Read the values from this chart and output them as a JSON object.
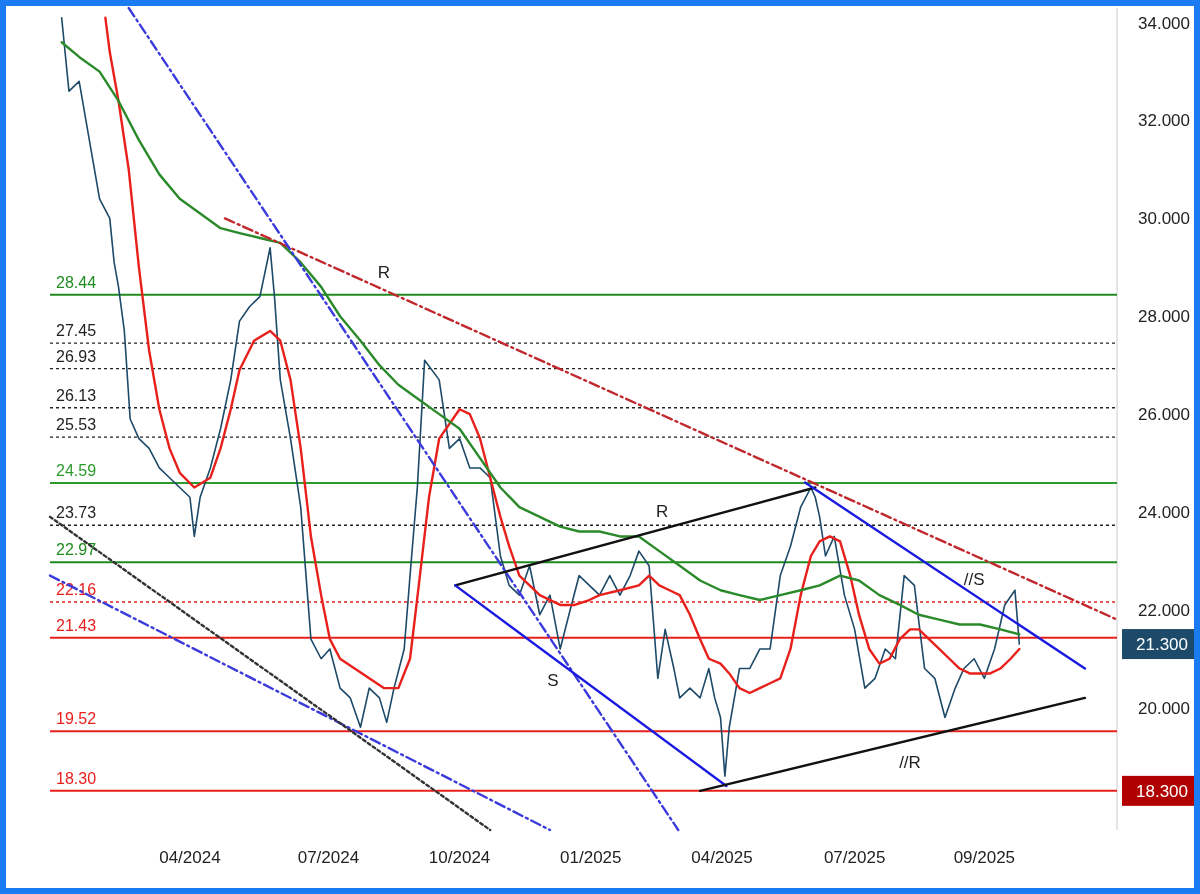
{
  "chart_data": {
    "type": "line",
    "xlim": [
      "2023-12-27",
      "2025-12-28"
    ],
    "ylim": [
      17.5,
      34.3
    ],
    "xticks": [
      {
        "value": "2024-04-01",
        "label": "04/2024"
      },
      {
        "value": "2024-07-05",
        "label": "07/2024"
      },
      {
        "value": "2024-10-03",
        "label": "10/2024"
      },
      {
        "value": "2025-01-01",
        "label": "01/2025"
      },
      {
        "value": "2025-04-01",
        "label": "04/2025"
      },
      {
        "value": "2025-07-01",
        "label": "07/2025"
      },
      {
        "value": "2025-09-28",
        "label": "09/2025"
      }
    ],
    "yticks": [
      {
        "value": 20,
        "label": "20.000"
      },
      {
        "value": 22,
        "label": "22.000"
      },
      {
        "value": 24,
        "label": "24.000"
      },
      {
        "value": 26,
        "label": "26.000"
      },
      {
        "value": 28,
        "label": "28.000"
      },
      {
        "value": 30,
        "label": "30.000"
      },
      {
        "value": 32,
        "label": "32.000"
      },
      {
        "value": 34,
        "label": "34.000"
      }
    ],
    "series": [
      {
        "color": "#1d4a68",
        "x": [
          "2024-01-04",
          "2024-01-09",
          "2024-01-16",
          "2024-01-23",
          "2024-01-30",
          "2024-02-06",
          "2024-02-09",
          "2024-02-12",
          "2024-02-16",
          "2024-02-20",
          "2024-02-26",
          "2024-03-04",
          "2024-03-11",
          "2024-03-18",
          "2024-03-25",
          "2024-04-01",
          "2024-04-04",
          "2024-04-08",
          "2024-04-15",
          "2024-04-22",
          "2024-04-29",
          "2024-05-05",
          "2024-05-12",
          "2024-05-19",
          "2024-05-26",
          "2024-05-29",
          "2024-06-02",
          "2024-06-09",
          "2024-06-16",
          "2024-06-23",
          "2024-06-30",
          "2024-07-06",
          "2024-07-13",
          "2024-07-20",
          "2024-07-27",
          "2024-08-02",
          "2024-08-09",
          "2024-08-14",
          "2024-08-19",
          "2024-08-26",
          "2024-08-30",
          "2024-09-04",
          "2024-09-09",
          "2024-09-19",
          "2024-09-26",
          "2024-10-03",
          "2024-10-10",
          "2024-10-17",
          "2024-10-24",
          "2024-10-31",
          "2024-11-06",
          "2024-11-13",
          "2024-11-20",
          "2024-11-27",
          "2024-12-04",
          "2024-12-11",
          "2024-12-17",
          "2024-12-24",
          "2024-12-31",
          "2025-01-07",
          "2025-01-14",
          "2025-01-21",
          "2025-01-28",
          "2025-02-03",
          "2025-02-10",
          "2025-02-16",
          "2025-02-21",
          "2025-02-27",
          "2025-03-03",
          "2025-03-10",
          "2025-03-17",
          "2025-03-23",
          "2025-03-27",
          "2025-03-31",
          "2025-04-03",
          "2025-04-06",
          "2025-04-13",
          "2025-04-20",
          "2025-04-27",
          "2025-05-04",
          "2025-05-11",
          "2025-05-18",
          "2025-05-25",
          "2025-06-01",
          "2025-06-04",
          "2025-06-07",
          "2025-06-11",
          "2025-06-17",
          "2025-06-24",
          "2025-07-01",
          "2025-07-08",
          "2025-07-15",
          "2025-07-22",
          "2025-07-29",
          "2025-08-04",
          "2025-08-11",
          "2025-08-18",
          "2025-08-25",
          "2025-09-01",
          "2025-09-08",
          "2025-09-14",
          "2025-09-21",
          "2025-09-28",
          "2025-10-05",
          "2025-10-12",
          "2025-10-19",
          "2025-10-22"
        ],
        "values": [
          34.1,
          32.6,
          32.8,
          31.6,
          30.4,
          30.0,
          29.1,
          28.6,
          27.7,
          25.9,
          25.5,
          25.3,
          24.9,
          24.7,
          24.5,
          24.3,
          23.5,
          24.3,
          24.9,
          25.7,
          26.7,
          27.9,
          28.2,
          28.4,
          29.4,
          28.4,
          26.7,
          25.5,
          24.1,
          21.4,
          21.0,
          21.2,
          20.4,
          20.2,
          19.6,
          20.4,
          20.2,
          19.7,
          20.4,
          21.2,
          22.7,
          24.5,
          27.1,
          26.7,
          25.3,
          25.5,
          24.9,
          24.9,
          24.7,
          23.1,
          22.5,
          22.3,
          22.9,
          21.9,
          22.3,
          21.2,
          21.9,
          22.7,
          22.5,
          22.3,
          22.7,
          22.3,
          22.7,
          23.2,
          22.9,
          20.6,
          21.6,
          20.8,
          20.2,
          20.4,
          20.2,
          20.8,
          20.2,
          19.8,
          18.6,
          19.6,
          20.8,
          20.8,
          21.2,
          21.2,
          22.7,
          23.3,
          24.1,
          24.5,
          24.3,
          23.9,
          23.1,
          23.5,
          22.3,
          21.6,
          20.4,
          20.6,
          21.2,
          21.0,
          22.7,
          22.5,
          20.8,
          20.6,
          19.8,
          20.4,
          20.8,
          21.0,
          20.6,
          21.2,
          22.1,
          22.4,
          21.3
        ]
      },
      {
        "color": "#e8201c",
        "x": [
          "2024-02-03",
          "2024-02-06",
          "2024-02-12",
          "2024-02-19",
          "2024-02-26",
          "2024-03-04",
          "2024-03-11",
          "2024-03-18",
          "2024-03-25",
          "2024-04-04",
          "2024-04-15",
          "2024-04-22",
          "2024-04-29",
          "2024-05-05",
          "2024-05-15",
          "2024-05-26",
          "2024-06-02",
          "2024-06-09",
          "2024-06-16",
          "2024-06-23",
          "2024-06-30",
          "2024-07-06",
          "2024-07-13",
          "2024-07-23",
          "2024-08-02",
          "2024-08-12",
          "2024-08-22",
          "2024-08-30",
          "2024-09-05",
          "2024-09-12",
          "2024-09-19",
          "2024-10-03",
          "2024-10-10",
          "2024-10-17",
          "2024-10-24",
          "2024-10-31",
          "2024-11-06",
          "2024-11-13",
          "2024-11-20",
          "2024-11-27",
          "2024-12-11",
          "2024-12-21",
          "2024-12-31",
          "2025-01-07",
          "2025-01-21",
          "2025-02-03",
          "2025-02-10",
          "2025-02-17",
          "2025-02-24",
          "2025-03-03",
          "2025-03-10",
          "2025-03-17",
          "2025-03-23",
          "2025-03-31",
          "2025-04-06",
          "2025-04-13",
          "2025-04-20",
          "2025-04-27",
          "2025-05-04",
          "2025-05-11",
          "2025-05-18",
          "2025-05-25",
          "2025-06-01",
          "2025-06-07",
          "2025-06-14",
          "2025-06-21",
          "2025-06-28",
          "2025-07-04",
          "2025-07-11",
          "2025-07-18",
          "2025-07-25",
          "2025-08-01",
          "2025-08-08",
          "2025-08-14",
          "2025-08-21",
          "2025-08-28",
          "2025-09-04",
          "2025-09-11",
          "2025-09-18",
          "2025-09-25",
          "2025-10-02",
          "2025-10-09",
          "2025-10-16",
          "2025-10-22"
        ],
        "values": [
          34.1,
          33.4,
          32.4,
          31.0,
          29.0,
          27.3,
          26.1,
          25.3,
          24.8,
          24.5,
          24.7,
          25.3,
          26.1,
          26.9,
          27.5,
          27.7,
          27.5,
          26.7,
          25.3,
          23.5,
          22.3,
          21.4,
          21.0,
          20.8,
          20.6,
          20.4,
          20.4,
          21.0,
          22.5,
          24.3,
          25.5,
          26.1,
          26.0,
          25.5,
          24.7,
          23.9,
          23.3,
          22.7,
          22.5,
          22.3,
          22.1,
          22.1,
          22.2,
          22.3,
          22.4,
          22.5,
          22.7,
          22.5,
          22.4,
          22.3,
          21.9,
          21.4,
          21.0,
          20.9,
          20.7,
          20.4,
          20.3,
          20.4,
          20.5,
          20.6,
          21.2,
          22.3,
          23.1,
          23.4,
          23.5,
          23.4,
          22.7,
          21.9,
          21.2,
          20.9,
          21.0,
          21.4,
          21.6,
          21.6,
          21.4,
          21.2,
          21.0,
          20.8,
          20.7,
          20.7,
          20.7,
          20.8,
          21.0,
          21.2
        ]
      },
      {
        "color": "#2a8a2a",
        "x": [
          "2024-01-04",
          "2024-01-16",
          "2024-01-30",
          "2024-02-12",
          "2024-02-26",
          "2024-03-11",
          "2024-03-25",
          "2024-04-08",
          "2024-04-22",
          "2024-05-05",
          "2024-05-19",
          "2024-06-02",
          "2024-06-16",
          "2024-06-30",
          "2024-07-13",
          "2024-07-27",
          "2024-08-09",
          "2024-08-22",
          "2024-09-05",
          "2024-09-19",
          "2024-10-03",
          "2024-10-17",
          "2024-10-31",
          "2024-11-13",
          "2024-11-27",
          "2024-12-11",
          "2024-12-24",
          "2025-01-07",
          "2025-01-21",
          "2025-02-03",
          "2025-02-17",
          "2025-03-03",
          "2025-03-17",
          "2025-03-31",
          "2025-04-13",
          "2025-04-27",
          "2025-05-11",
          "2025-05-25",
          "2025-06-07",
          "2025-06-21",
          "2025-07-04",
          "2025-07-18",
          "2025-08-01",
          "2025-08-14",
          "2025-08-28",
          "2025-09-11",
          "2025-09-25",
          "2025-10-09",
          "2025-10-22"
        ],
        "values": [
          33.6,
          33.3,
          33.0,
          32.4,
          31.6,
          30.9,
          30.4,
          30.1,
          29.8,
          29.7,
          29.6,
          29.5,
          29.1,
          28.6,
          28.0,
          27.5,
          27.0,
          26.6,
          26.3,
          26.0,
          25.7,
          25.1,
          24.5,
          24.1,
          23.9,
          23.7,
          23.6,
          23.6,
          23.5,
          23.5,
          23.2,
          22.9,
          22.6,
          22.4,
          22.3,
          22.2,
          22.3,
          22.4,
          22.5,
          22.7,
          22.6,
          22.3,
          22.1,
          21.9,
          21.8,
          21.7,
          21.7,
          21.6,
          21.5
        ]
      },
      {
        "color": "#c0282d",
        "line_style": "dashed",
        "x": [
          "2024-04-25",
          "2025-12-28"
        ],
        "values": [
          30.0,
          21.8
        ]
      },
      {
        "color": "#3b3bdb",
        "line_style": "dashed",
        "x": [
          "2024-02-19",
          "2025-03-02"
        ],
        "values": [
          34.3,
          17.5
        ]
      },
      {
        "color": "#3b3bdb",
        "line_style": "dashed",
        "x": [
          "2023-12-27",
          "2024-12-04"
        ],
        "values": [
          22.7,
          17.5
        ]
      },
      {
        "color": "#333333",
        "line_style": "dotted",
        "x": [
          "2023-12-27",
          "2024-10-24"
        ],
        "values": [
          23.9,
          17.5
        ]
      },
      {
        "color": "#111111",
        "x": [
          "2024-09-30",
          "2025-06-04"
        ],
        "values": [
          22.5,
          24.5
        ]
      },
      {
        "color": "#1a1ae0",
        "x": [
          "2024-09-30",
          "2025-04-04"
        ],
        "values": [
          22.5,
          18.4
        ]
      },
      {
        "color": "#111111",
        "x": [
          "2025-03-17",
          "2025-12-06"
        ],
        "values": [
          18.3,
          20.2
        ]
      },
      {
        "color": "#1a1ae0",
        "x": [
          "2025-05-28",
          "2025-12-06"
        ],
        "values": [
          24.6,
          20.8
        ]
      }
    ],
    "ref_lines": [
      {
        "axis": "y",
        "value": 28.44,
        "label": "28.44",
        "color": "#1f8a1f",
        "line_style": "solid"
      },
      {
        "axis": "y",
        "value": 27.45,
        "label": "27.45",
        "color": "#222222",
        "line_style": "dotted"
      },
      {
        "axis": "y",
        "value": 26.93,
        "label": "26.93",
        "color": "#222222",
        "line_style": "dotted"
      },
      {
        "axis": "y",
        "value": 26.13,
        "label": "26.13",
        "color": "#222222",
        "line_style": "dotted"
      },
      {
        "axis": "y",
        "value": 25.53,
        "label": "25.53",
        "color": "#222222",
        "line_style": "dotted"
      },
      {
        "axis": "y",
        "value": 24.59,
        "label": "24.59",
        "color": "#2e9a2e",
        "line_style": "solid"
      },
      {
        "axis": "y",
        "value": 23.73,
        "label": "23.73",
        "color": "#222222",
        "line_style": "dotted"
      },
      {
        "axis": "y",
        "value": 22.97,
        "label": "22.97",
        "color": "#1f8a1f",
        "line_style": "solid"
      },
      {
        "axis": "y",
        "value": 22.16,
        "label": "22.16",
        "color": "#e8201c",
        "line_style": "dotted"
      },
      {
        "axis": "y",
        "value": 21.43,
        "label": "21.43",
        "color": "#e8201c",
        "line_style": "solid"
      },
      {
        "axis": "y",
        "value": 19.52,
        "label": "19.52",
        "color": "#e8201c",
        "line_style": "solid"
      },
      {
        "axis": "y",
        "value": 18.3,
        "label": "18.30",
        "color": "#e8201c",
        "line_style": "solid"
      }
    ],
    "annotations": [
      {
        "text": "R",
        "x": "2024-08-12",
        "y": 28.54
      },
      {
        "text": "R",
        "x": "2025-02-19",
        "y": 23.65
      },
      {
        "text": "S",
        "x": "2024-12-06",
        "y": 21.02
      },
      {
        "text": "//S",
        "x": "2025-09-21",
        "y": 22.3
      },
      {
        "text": "//R",
        "x": "2025-08-08",
        "y": 19.34
      },
      "21.300",
      {
        "text": "18.300",
        "x": "2025-12-28",
        "y": 18.3
      }
    ]
  }
}
